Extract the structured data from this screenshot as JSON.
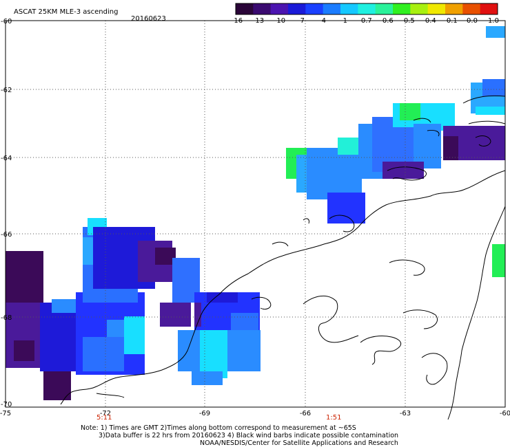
{
  "header": {
    "product": "ASCAT 25KM MLE-3 ascending",
    "date": "20160623"
  },
  "colorbar": {
    "labels": [
      "-16",
      "-13",
      "-10",
      "-7",
      "-4",
      "-1",
      "-0.7",
      "-0.6",
      "-0.5",
      "-0.4",
      "-0.1",
      "0.0",
      "1.0"
    ],
    "colors": [
      "#2a0538",
      "#3a0a70",
      "#4b14b0",
      "#1a1ad8",
      "#1a40ff",
      "#1b7cff",
      "#15c8ff",
      "#1ff0e0",
      "#2af29a",
      "#30f020",
      "#a8f010",
      "#f0e800",
      "#f0a000",
      "#e85000",
      "#e01010"
    ]
  },
  "axes": {
    "lon_labels": [
      "-75",
      "-72",
      "-69",
      "-66",
      "-63",
      "-60"
    ],
    "lat_labels": [
      "-60",
      "-62",
      "-64",
      "-66",
      "-68",
      "-70"
    ]
  },
  "times": [
    {
      "label": "5:11"
    },
    {
      "label": "1:51"
    }
  ],
  "notes": {
    "line1": "Note: 1) Times are GMT 2)Times along bottom correspond to measurement at ~65S",
    "line2": "3)Data buffer is 22 hrs from 20160623 4) Black wind barbs indicate possible contamination",
    "line3": "NOAA/NESDIS/Center for Satellite Applications and Research"
  },
  "legend_colors": {
    "dark_purple": "#3b0a58",
    "purple": "#4a1a9a",
    "dark_blue": "#1e1ad8",
    "blue": "#2233ff",
    "mid_blue": "#2f70ff",
    "light_blue": "#2aa8ff",
    "cyan": "#18dfff",
    "aqua": "#22f0d8",
    "green": "#22ee55"
  }
}
